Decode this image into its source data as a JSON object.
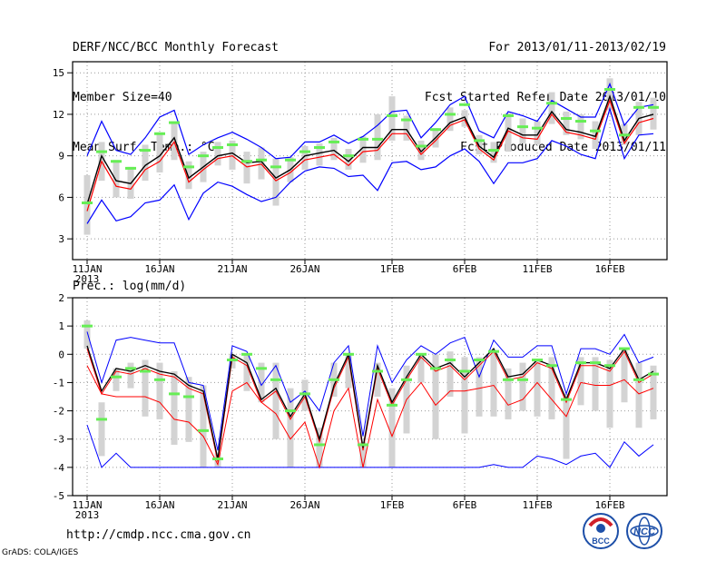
{
  "header": {
    "left": [
      "DERF/NCC/BCC Monthly Forecast",
      "Member Size=40",
      "Mean Surf. Temp.: °C"
    ],
    "right": [
      "For 2013/01/11-2013/02/19",
      "Fcst Started Refer Date 2013/01/10",
      "Fcst Produced Date 2013/01/11"
    ]
  },
  "footer": {
    "url": "http://cmdp.ncc.cma.gov.cn",
    "credit": "GrADS: COLA/IGES"
  },
  "logos": [
    {
      "name": "bcc-logo",
      "text": "BCC"
    },
    {
      "name": "ncc-logo",
      "text": "NCC"
    }
  ],
  "colors": {
    "ensemble_mean": "#000000",
    "median": "#ff0000",
    "spread": "#0000ff",
    "bar": "#d3d3d3",
    "observed": "#66ee55"
  },
  "chart_data": [
    {
      "type": "line",
      "title": "Mean Surf. Temp.: °C",
      "xlabel": "",
      "ylabel": "",
      "x_ticks": [
        "11JAN",
        "16JAN",
        "21JAN",
        "26JAN",
        "1FEB",
        "6FEB",
        "11FEB",
        "16FEB"
      ],
      "x_tick_days": [
        0,
        5,
        10,
        15,
        21,
        26,
        31,
        36
      ],
      "x_year": "2013",
      "ylim": [
        1.5,
        15.8
      ],
      "y_ticks": [
        3,
        6,
        9,
        12,
        15
      ],
      "days": 40,
      "series": [
        {
          "name": "ensemble mean",
          "values": [
            5.5,
            9.0,
            7.2,
            7.0,
            8.3,
            9.0,
            10.3,
            7.4,
            8.2,
            9.0,
            9.2,
            8.5,
            8.6,
            7.4,
            8.0,
            9.0,
            9.2,
            9.4,
            8.6,
            9.6,
            9.6,
            10.9,
            10.9,
            9.3,
            10.3,
            11.4,
            11.8,
            9.7,
            8.9,
            11.0,
            10.5,
            10.5,
            12.2,
            10.9,
            10.7,
            10.4,
            13.3,
            10.1,
            11.7,
            12.0
          ]
        },
        {
          "name": "median",
          "values": [
            5.0,
            8.6,
            6.8,
            6.6,
            8.0,
            8.6,
            10.0,
            7.1,
            8.0,
            8.8,
            9.0,
            8.2,
            8.4,
            7.2,
            7.8,
            8.7,
            8.9,
            9.1,
            8.3,
            9.3,
            9.4,
            10.6,
            10.6,
            9.1,
            10.1,
            11.2,
            11.6,
            9.5,
            8.7,
            10.8,
            10.3,
            10.2,
            12.0,
            10.7,
            10.5,
            10.2,
            13.0,
            9.9,
            11.4,
            11.7
          ]
        },
        {
          "name": "max",
          "values": [
            9.0,
            11.5,
            9.4,
            9.1,
            10.3,
            11.8,
            12.3,
            9.1,
            9.8,
            10.3,
            10.7,
            10.2,
            9.6,
            8.8,
            8.9,
            10.0,
            10.0,
            10.5,
            9.9,
            10.4,
            11.2,
            12.2,
            12.3,
            10.3,
            11.4,
            12.7,
            13.3,
            10.8,
            10.3,
            12.2,
            11.9,
            11.5,
            13.0,
            12.4,
            11.8,
            11.8,
            14.2,
            11.2,
            12.5,
            12.7
          ]
        },
        {
          "name": "min",
          "values": [
            4.1,
            5.8,
            4.3,
            4.6,
            5.6,
            5.8,
            6.9,
            4.4,
            6.3,
            7.1,
            6.8,
            6.2,
            5.7,
            6.0,
            7.1,
            7.9,
            8.2,
            8.1,
            7.5,
            7.6,
            6.5,
            8.5,
            8.6,
            8.0,
            8.2,
            9.0,
            9.5,
            8.6,
            7.0,
            8.5,
            8.5,
            8.8,
            10.1,
            9.7,
            9.1,
            8.8,
            12.4,
            8.8,
            10.5,
            10.6
          ]
        },
        {
          "name": "observed",
          "values": [
            5.6,
            9.3,
            8.6,
            8.1,
            9.4,
            10.6,
            11.4,
            8.2,
            9.0,
            9.6,
            9.8,
            8.6,
            8.7,
            8.2,
            8.7,
            9.3,
            9.6,
            10.0,
            9.0,
            10.2,
            10.2,
            11.9,
            11.6,
            9.7,
            10.9,
            12.0,
            12.7,
            10.1,
            9.4,
            11.9,
            11.1,
            11.0,
            12.8,
            11.7,
            11.5,
            10.8,
            13.8,
            10.5,
            12.5,
            12.5
          ]
        },
        {
          "name": "quartile low",
          "values": [
            3.3,
            7.2,
            6.0,
            5.9,
            7.2,
            7.8,
            8.7,
            6.6,
            7.1,
            8.3,
            8.0,
            7.0,
            7.3,
            5.4,
            7.1,
            8.0,
            8.3,
            8.7,
            8.0,
            8.5,
            8.7,
            10.1,
            10.1,
            8.7,
            9.6,
            10.8,
            11.1,
            9.1,
            8.5,
            9.3,
            9.9,
            9.8,
            11.3,
            10.5,
            10.2,
            9.5,
            12.3,
            9.8,
            10.5,
            10.9
          ]
        },
        {
          "name": "quartile high",
          "values": [
            7.6,
            10.0,
            8.7,
            8.2,
            9.8,
            10.7,
            11.5,
            8.6,
            9.3,
            10.0,
            10.1,
            9.3,
            9.6,
            8.8,
            8.9,
            9.7,
            9.9,
            10.3,
            9.5,
            10.4,
            12.0,
            13.3,
            11.9,
            10.1,
            11.0,
            12.5,
            12.3,
            10.5,
            10.0,
            12.1,
            11.7,
            11.5,
            13.6,
            12.2,
            12.0,
            11.5,
            14.6,
            11.3,
            12.9,
            13.2
          ]
        }
      ]
    },
    {
      "type": "line",
      "title": "Prec.: log(mm/d)",
      "xlabel": "",
      "ylabel": "",
      "x_ticks": [
        "11JAN",
        "16JAN",
        "21JAN",
        "26JAN",
        "1FEB",
        "6FEB",
        "11FEB",
        "16FEB"
      ],
      "x_tick_days": [
        0,
        5,
        10,
        15,
        21,
        26,
        31,
        36
      ],
      "x_year": "2013",
      "ylim": [
        -5,
        2
      ],
      "y_ticks": [
        -5,
        -4,
        -3,
        -2,
        -1,
        0,
        1,
        2
      ],
      "days": 40,
      "series": [
        {
          "name": "ensemble mean",
          "values": [
            0.3,
            -1.3,
            -0.5,
            -0.6,
            -0.4,
            -0.6,
            -0.7,
            -1.1,
            -1.3,
            -3.7,
            0.0,
            -0.3,
            -1.6,
            -1.2,
            -2.2,
            -1.4,
            -3.0,
            -1.1,
            0.0,
            -3.3,
            -0.4,
            -1.7,
            -0.8,
            0.0,
            -0.5,
            -0.3,
            -0.8,
            -0.3,
            0.2,
            -0.8,
            -0.7,
            -0.2,
            -0.4,
            -1.6,
            -0.3,
            -0.3,
            -0.5,
            0.2,
            -0.9,
            -0.6
          ]
        },
        {
          "name": "median",
          "values": [
            0.2,
            -1.4,
            -0.6,
            -0.7,
            -0.5,
            -0.7,
            -0.8,
            -1.2,
            -1.4,
            -3.8,
            -0.1,
            -0.4,
            -1.7,
            -1.3,
            -2.3,
            -1.5,
            -3.1,
            -1.2,
            -0.1,
            -3.4,
            -0.5,
            -1.8,
            -0.9,
            -0.1,
            -0.6,
            -0.4,
            -0.9,
            -0.4,
            0.1,
            -0.9,
            -0.8,
            -0.3,
            -0.5,
            -1.7,
            -0.4,
            -0.4,
            -0.6,
            0.1,
            -1.0,
            -0.7
          ]
        },
        {
          "name": "max",
          "values": [
            0.8,
            -1.0,
            0.5,
            0.6,
            0.5,
            0.4,
            0.4,
            -1.0,
            -1.1,
            -3.4,
            0.3,
            0.1,
            -1.1,
            -0.4,
            -1.7,
            -1.3,
            -2.0,
            -0.3,
            0.3,
            -2.9,
            0.3,
            -1.0,
            -0.2,
            0.3,
            0.0,
            0.4,
            0.6,
            -0.8,
            0.5,
            -0.1,
            -0.1,
            0.3,
            0.3,
            -1.4,
            0.2,
            0.2,
            0.0,
            0.7,
            -0.3,
            -0.1
          ]
        },
        {
          "name": "min",
          "values": [
            -2.5,
            -4.0,
            -3.5,
            -4.0,
            -4.0,
            -4.0,
            -4.0,
            -4.0,
            -4.0,
            -4.0,
            -4.0,
            -4.0,
            -4.0,
            -4.0,
            -4.0,
            -4.0,
            -4.0,
            -4.0,
            -4.0,
            -4.0,
            -4.0,
            -4.0,
            -4.0,
            -4.0,
            -4.0,
            -4.0,
            -4.0,
            -4.0,
            -3.9,
            -4.0,
            -4.0,
            -3.6,
            -3.7,
            -3.9,
            -3.6,
            -3.5,
            -4.0,
            -3.1,
            -3.6,
            -3.2
          ]
        },
        {
          "name": "low series",
          "values": [
            -0.4,
            -1.4,
            -1.5,
            -1.5,
            -1.5,
            -1.7,
            -2.3,
            -2.4,
            -2.9,
            -3.9,
            -1.3,
            -1.0,
            -1.7,
            -2.1,
            -3.0,
            -2.4,
            -4.0,
            -2.0,
            -1.2,
            -4.0,
            -1.6,
            -2.9,
            -1.6,
            -1.0,
            -1.8,
            -1.3,
            -1.3,
            -1.2,
            -1.1,
            -1.8,
            -1.6,
            -1.0,
            -1.6,
            -2.2,
            -1.0,
            -1.1,
            -1.1,
            -0.9,
            -1.4,
            -1.2
          ]
        },
        {
          "name": "observed",
          "values": [
            1.0,
            -2.3,
            -0.8,
            -0.5,
            -0.6,
            -0.9,
            -1.4,
            -1.5,
            -2.7,
            -3.7,
            -0.2,
            0.0,
            -0.5,
            -0.9,
            -2.0,
            -1.4,
            -3.2,
            -0.9,
            0.0,
            -3.2,
            -0.6,
            -1.8,
            -0.9,
            0.0,
            -0.5,
            -0.2,
            -0.6,
            -0.2,
            0.1,
            -0.9,
            -0.9,
            -0.2,
            -0.4,
            -1.6,
            -0.3,
            -0.3,
            -0.4,
            0.2,
            -0.9,
            -0.7
          ]
        },
        {
          "name": "quartile low",
          "values": [
            0.2,
            -3.6,
            -1.3,
            -1.2,
            -2.2,
            -2.3,
            -3.2,
            -3.1,
            -4.0,
            -4.0,
            -0.5,
            -1.3,
            -1.7,
            -3.0,
            -4.0,
            -2.0,
            -4.0,
            -1.5,
            -1.2,
            -4.0,
            -1.5,
            -4.0,
            -2.8,
            -1.0,
            -3.0,
            -1.5,
            -2.8,
            -2.2,
            -2.2,
            -2.3,
            -2.0,
            -2.2,
            -2.3,
            -3.7,
            -1.8,
            -2.0,
            -2.6,
            -1.7,
            -2.6,
            -2.3
          ]
        },
        {
          "name": "quartile high",
          "values": [
            1.2,
            -1.7,
            -0.5,
            -0.3,
            -0.2,
            -0.3,
            -0.6,
            -0.8,
            -1.1,
            -3.5,
            0.0,
            0.0,
            -0.3,
            -0.3,
            -1.2,
            -0.9,
            -2.6,
            -0.3,
            0.0,
            -3.1,
            -0.3,
            -1.2,
            -0.4,
            0.0,
            0.0,
            0.1,
            -0.1,
            -0.1,
            0.1,
            -0.5,
            -0.3,
            -0.2,
            -0.1,
            -1.4,
            -0.1,
            -0.1,
            -0.2,
            0.2,
            -0.3,
            -0.4
          ]
        }
      ]
    }
  ]
}
